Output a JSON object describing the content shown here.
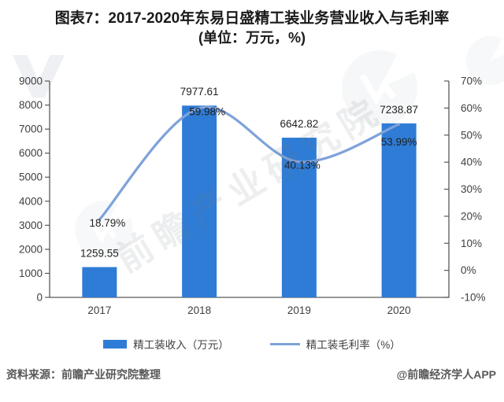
{
  "page": {
    "title_line1": "图表7：2017-2020年东易日盛精工装业务营业收入与毛利率",
    "title_line2": "(单位：万元，%)"
  },
  "chart_data": {
    "type": "bar",
    "subtype": "bar+line combo, dual axis",
    "title": "图表7：2017-2020年东易日盛精工装业务营业收入与毛利率 (单位：万元，%)",
    "categories": [
      "2017",
      "2018",
      "2019",
      "2020"
    ],
    "series": [
      {
        "name": "精工装收入（万元）",
        "type": "bar",
        "axis": "left",
        "values": [
          1259.55,
          7977.61,
          6642.82,
          7238.87
        ],
        "data_labels": [
          "1259.55",
          "7977.61",
          "6642.82",
          "7238.87"
        ]
      },
      {
        "name": "精工装毛利率（%）",
        "type": "line",
        "axis": "right",
        "values": [
          18.79,
          59.98,
          40.13,
          53.99
        ],
        "data_labels": [
          "18.79%",
          "59.98%",
          "40.13%",
          "53.99%"
        ]
      }
    ],
    "left_axis": {
      "min": 0,
      "max": 9000,
      "step": 1000,
      "tick_labels": [
        "0",
        "1000",
        "2000",
        "3000",
        "4000",
        "5000",
        "6000",
        "7000",
        "8000",
        "9000"
      ]
    },
    "right_axis": {
      "min": -10,
      "max": 70,
      "step": 10,
      "tick_labels": [
        "-10%",
        "0%",
        "10%",
        "20%",
        "30%",
        "40%",
        "50%",
        "60%",
        "70%"
      ]
    },
    "grid": false,
    "legend_position": "bottom"
  },
  "legend": {
    "items": [
      {
        "label": "精工装收入（万元）"
      },
      {
        "label": "精工装毛利率（%）"
      }
    ]
  },
  "footer": {
    "source": "资料来源：前瞻产业研究院整理",
    "credit": "@前瞻经济学人APP"
  },
  "watermark": {
    "text": "前瞻产业研究院"
  },
  "colors": {
    "bar": "#2E7CD6",
    "line": "#7EA2DA",
    "axis_line": "#595959",
    "axis_text": "#404040",
    "label_text": "#1f1f1f",
    "title_text": "#1a1a1a",
    "footer_text": "#595959",
    "background": "#FFFFFF"
  }
}
